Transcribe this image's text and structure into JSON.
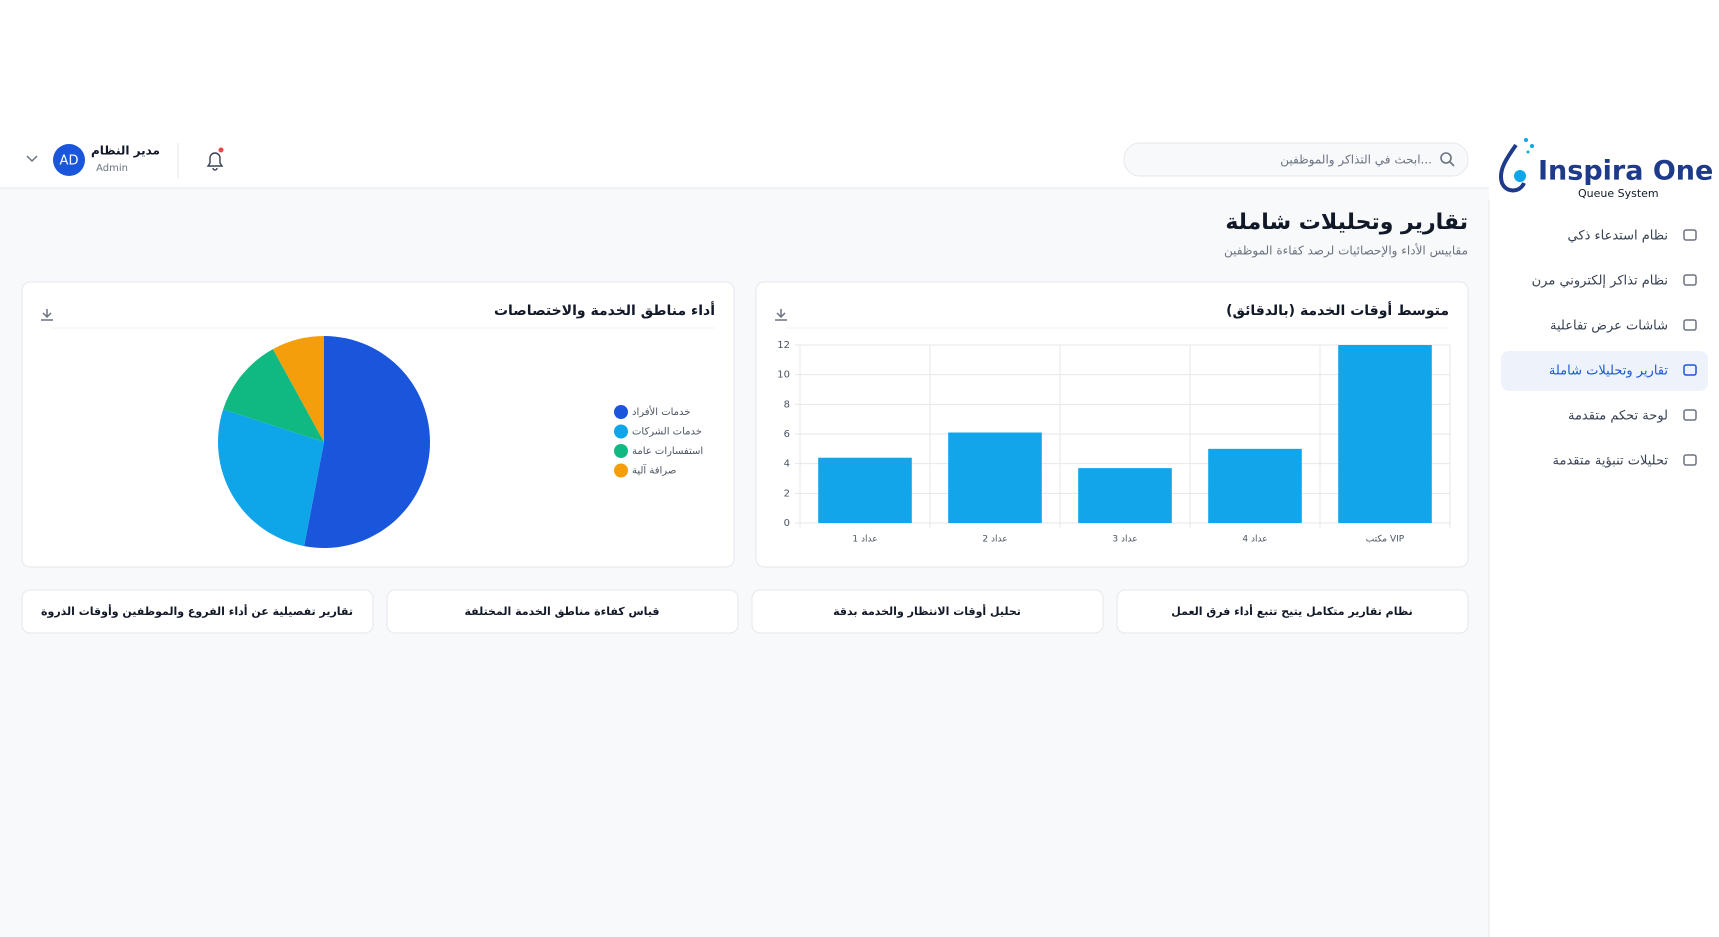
{
  "header": {
    "search_placeholder": "ابحث في التذاكر والموظفين...",
    "user_name": "مدير النظام",
    "user_role": "Admin",
    "avatar": "AD"
  },
  "sidebar": {
    "brand": "Inspira One",
    "brand_sub": "Queue System",
    "nav": [
      "نظام استدعاء ذكي",
      "نظام تذاكر إلكتروني مرن",
      "شاشات عرض تفاعلية",
      "تقارير وتحليلات شاملة",
      "لوحة تحكم متقدمة",
      "تحليلات تنبؤية متقدمة"
    ]
  },
  "page": {
    "title": "تقارير وتحليلات شاملة",
    "subtitle": "مقاييس الأداء والإحصائيات لرصد كفاءة الموظفين"
  },
  "chart_data": [
    {
      "type": "bar",
      "title": "متوسط أوقات الخدمة (بالدقائق)",
      "categories": [
        "عداد 1",
        "عداد 2",
        "عداد 3",
        "عداد 4",
        "مكتب VIP"
      ],
      "values": [
        4.4,
        6.1,
        3.7,
        5,
        12
      ],
      "color": "#12a5e9",
      "ylim": [
        0,
        12
      ],
      "yticks": [
        0,
        2,
        4,
        6,
        8,
        10,
        12
      ],
      "grid": true
    },
    {
      "type": "pie",
      "title": "أداء مناطق الخدمة والاختصاصات",
      "categories": [
        "خدمات الأفراد",
        "خدمات الشركات",
        "استفسارات عامة",
        "صرافة آلية"
      ],
      "values": [
        53,
        27,
        12,
        8
      ],
      "colors": [
        "#1a56db",
        "#0ea5e9",
        "#10b981",
        "#f59e0b"
      ]
    }
  ],
  "features": [
    "نظام تقارير متكامل يتيح تتبع أداء فرق العمل",
    "تحليل أوقات الانتظار والخدمة بدقة",
    "قياس كفاءة مناطق الخدمة المختلفة",
    "تقارير تفصيلية عن أداء الفروع والموظفين وأوقات الذروة"
  ]
}
